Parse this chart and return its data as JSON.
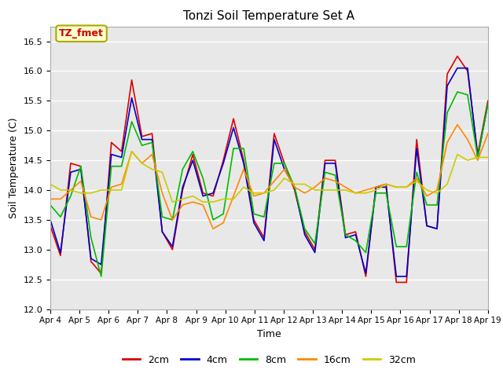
{
  "title": "Tonzi Soil Temperature Set A",
  "xlabel": "Time",
  "ylabel": "Soil Temperature (C)",
  "ylim": [
    12.0,
    16.75
  ],
  "annotation_text": "TZ_fmet",
  "annotation_color": "#cc0000",
  "annotation_bg": "#ffffcc",
  "annotation_border": "#aaaa00",
  "xtick_labels": [
    "Apr 4",
    "Apr 5",
    "Apr 6",
    "Apr 7",
    "Apr 8",
    "Apr 9",
    "Apr 10",
    "Apr 11",
    "Apr 12",
    "Apr 13",
    "Apr 14",
    "Apr 15",
    "Apr 16",
    "Apr 17",
    "Apr 18",
    "Apr 19"
  ],
  "series": {
    "2cm": {
      "color": "#dd0000",
      "lw": 1.2
    },
    "4cm": {
      "color": "#0000cc",
      "lw": 1.2
    },
    "8cm": {
      "color": "#00bb00",
      "lw": 1.2
    },
    "16cm": {
      "color": "#ff8800",
      "lw": 1.2
    },
    "32cm": {
      "color": "#cccc00",
      "lw": 1.2
    }
  },
  "data_2cm": [
    13.4,
    12.9,
    14.45,
    14.4,
    12.8,
    12.6,
    14.8,
    14.65,
    15.85,
    14.9,
    14.95,
    13.3,
    13.0,
    14.0,
    14.6,
    13.95,
    13.9,
    14.5,
    15.2,
    14.5,
    13.5,
    13.2,
    14.95,
    14.45,
    14.0,
    13.3,
    13.0,
    14.5,
    14.5,
    13.25,
    13.3,
    12.55,
    14.05,
    14.1,
    12.45,
    12.45,
    14.85,
    13.4,
    13.35,
    15.95,
    16.25,
    16.0,
    14.6,
    15.5
  ],
  "data_4cm": [
    13.5,
    12.95,
    14.3,
    14.35,
    12.85,
    12.75,
    14.6,
    14.55,
    15.55,
    14.85,
    14.85,
    13.3,
    13.05,
    14.05,
    14.5,
    13.9,
    13.95,
    14.45,
    15.05,
    14.45,
    13.45,
    13.15,
    14.85,
    14.35,
    14.05,
    13.25,
    12.95,
    14.45,
    14.45,
    13.2,
    13.25,
    12.6,
    14.05,
    14.05,
    12.55,
    12.55,
    14.7,
    13.4,
    13.35,
    15.75,
    16.05,
    16.05,
    14.55,
    15.45
  ],
  "data_8cm": [
    13.75,
    13.55,
    13.9,
    14.4,
    13.2,
    12.55,
    14.4,
    14.4,
    15.15,
    14.75,
    14.8,
    13.55,
    13.5,
    14.35,
    14.65,
    14.2,
    13.5,
    13.6,
    14.7,
    14.7,
    13.6,
    13.55,
    14.45,
    14.45,
    14.05,
    13.35,
    13.1,
    14.3,
    14.25,
    13.25,
    13.15,
    12.95,
    13.95,
    13.95,
    13.05,
    13.05,
    14.3,
    13.75,
    13.75,
    15.3,
    15.65,
    15.6,
    14.55,
    15.45
  ],
  "data_16cm": [
    13.85,
    13.85,
    14.0,
    14.15,
    13.55,
    13.5,
    14.05,
    14.1,
    14.65,
    14.45,
    14.6,
    13.95,
    13.5,
    13.75,
    13.8,
    13.75,
    13.35,
    13.45,
    13.9,
    14.35,
    13.9,
    13.95,
    14.15,
    14.35,
    14.05,
    13.95,
    14.05,
    14.2,
    14.15,
    14.05,
    13.95,
    14.0,
    14.05,
    14.1,
    14.05,
    14.05,
    14.2,
    13.9,
    14.0,
    14.8,
    15.1,
    14.85,
    14.5,
    14.95
  ],
  "data_32cm": [
    14.1,
    14.0,
    14.0,
    13.95,
    13.95,
    14.0,
    14.0,
    14.0,
    14.65,
    14.45,
    14.35,
    14.3,
    13.8,
    13.85,
    13.9,
    13.8,
    13.8,
    13.85,
    13.85,
    14.05,
    13.95,
    13.95,
    14.0,
    14.2,
    14.1,
    14.1,
    14.0,
    14.0,
    14.0,
    14.0,
    13.95,
    13.95,
    14.0,
    14.1,
    14.05,
    14.05,
    14.15,
    14.0,
    13.95,
    14.1,
    14.6,
    14.5,
    14.55,
    14.55
  ]
}
